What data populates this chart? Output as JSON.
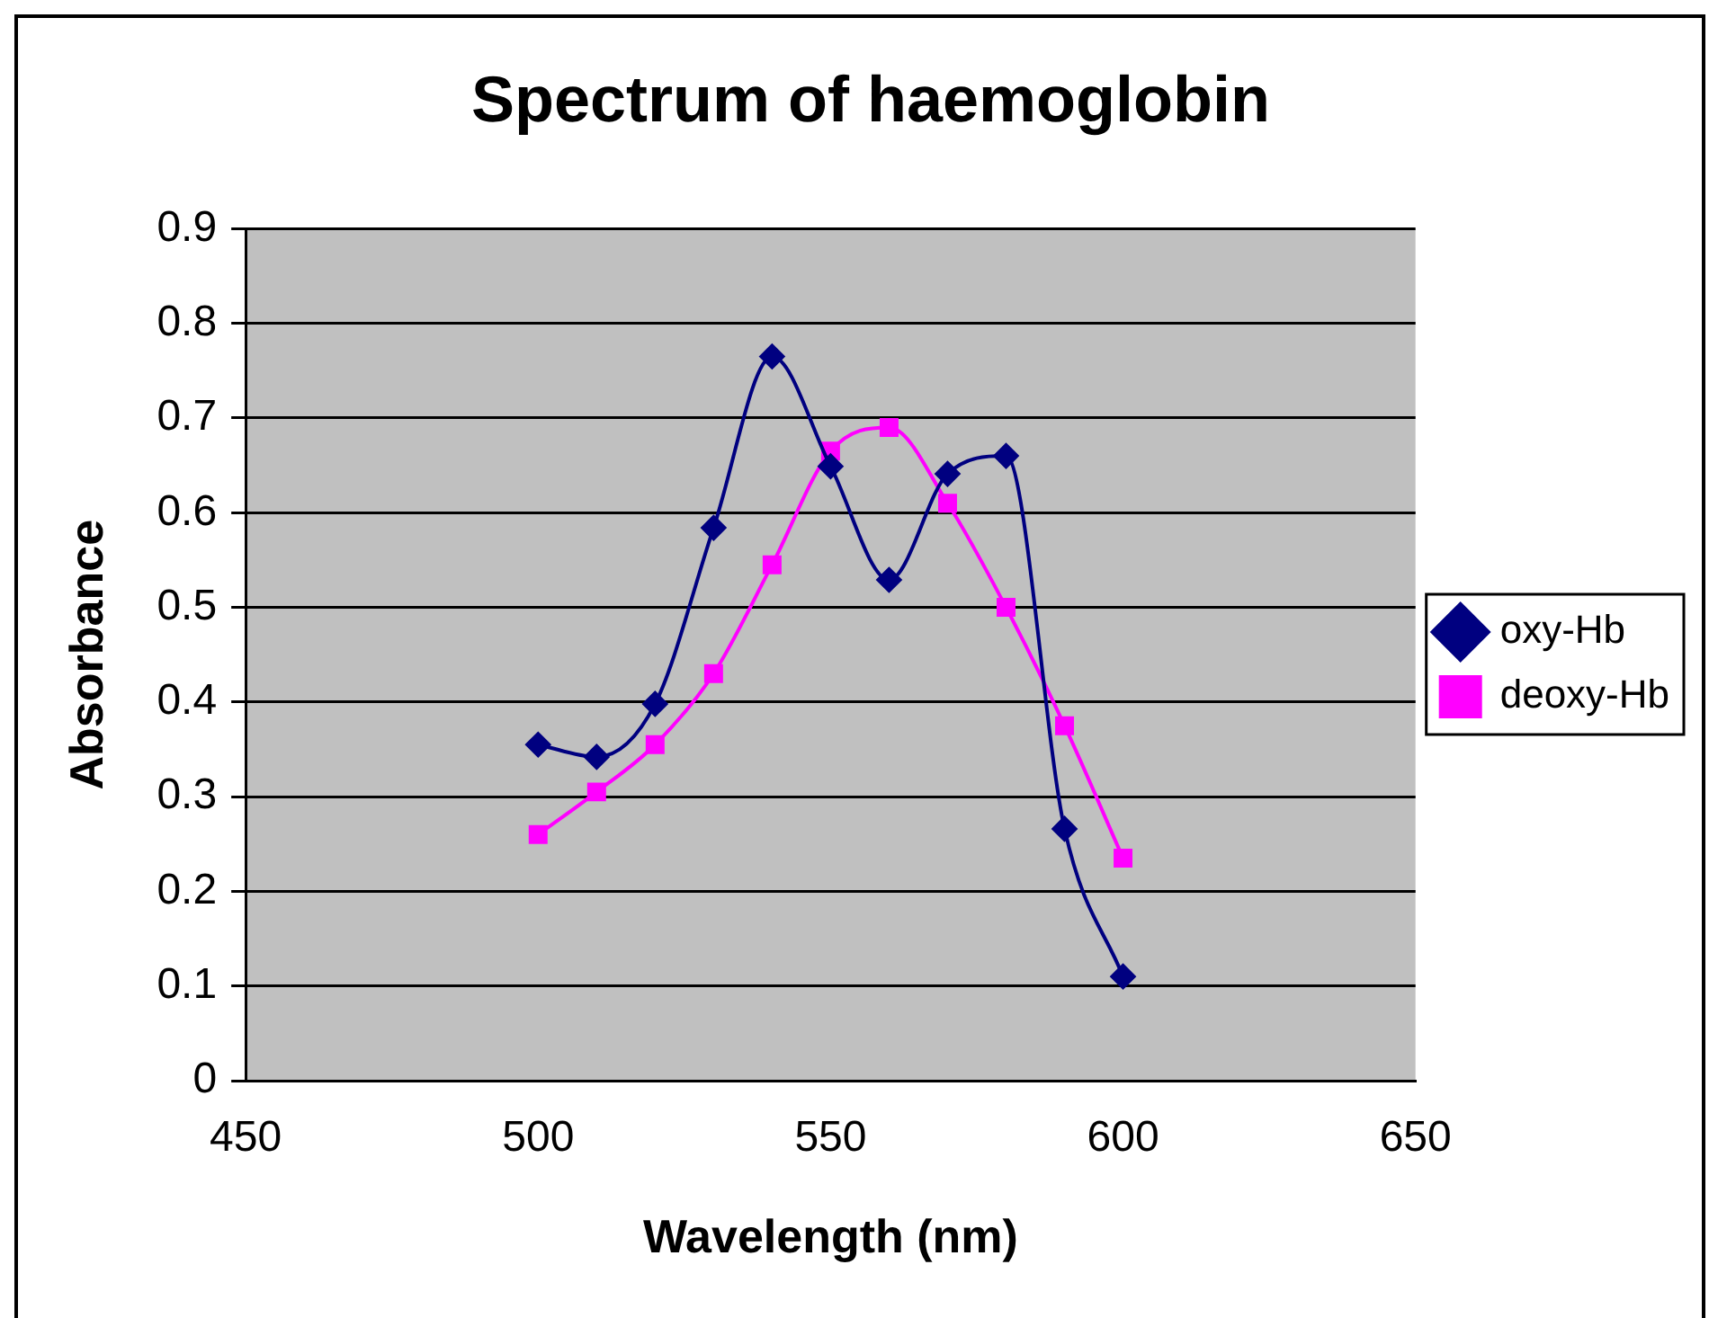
{
  "chart_data": {
    "type": "line",
    "title": "Spectrum of haemoglobin",
    "xlabel": "Wavelength (nm)",
    "ylabel": "Absorbance",
    "x": [
      500,
      510,
      520,
      530,
      540,
      550,
      560,
      570,
      580,
      590,
      600
    ],
    "series": [
      {
        "name": "oxy-Hb",
        "color": "#000080",
        "marker": "diamond",
        "values": [
          0.355,
          0.342,
          0.398,
          0.584,
          0.765,
          0.649,
          0.529,
          0.641,
          0.66,
          0.266,
          0.11
        ]
      },
      {
        "name": "deoxy-Hb",
        "color": "#ff00ff",
        "marker": "square",
        "values": [
          0.26,
          0.305,
          0.355,
          0.43,
          0.545,
          0.665,
          0.69,
          0.61,
          0.5,
          0.375,
          0.235
        ]
      }
    ],
    "xlim": [
      450,
      650
    ],
    "xticks": [
      450,
      500,
      550,
      600,
      650
    ],
    "ylim": [
      0,
      0.9
    ],
    "yticks": [
      0,
      0.1,
      0.2,
      0.3,
      0.4,
      0.5,
      0.6,
      0.7,
      0.8,
      0.9
    ],
    "grid": "y",
    "legend": "right",
    "line_style": "solid"
  }
}
